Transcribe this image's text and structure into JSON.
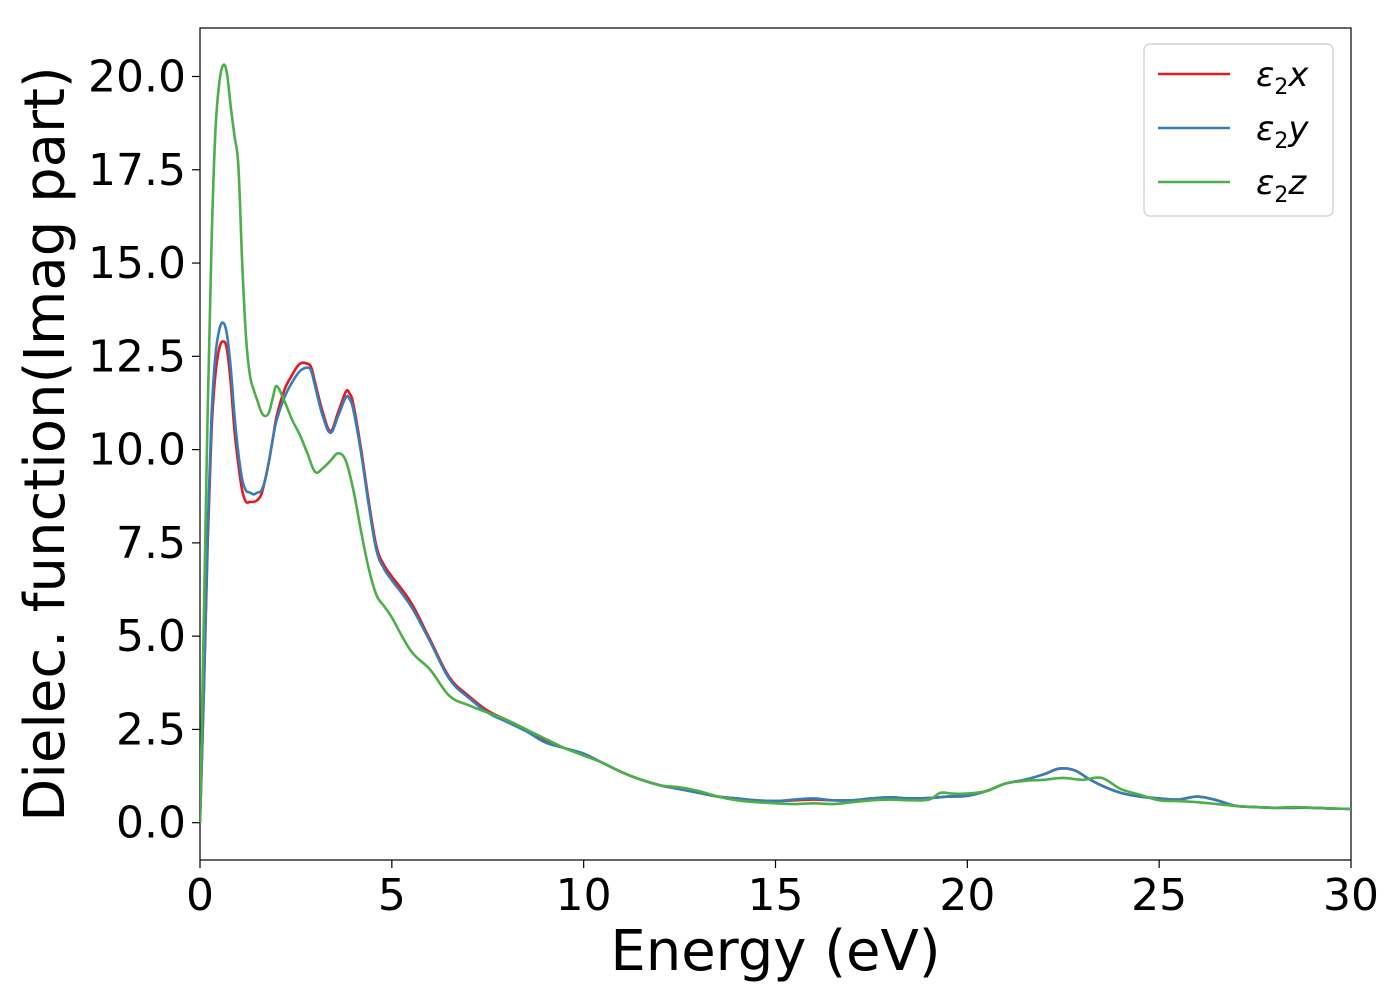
{
  "chart_data": {
    "type": "line",
    "title": "",
    "xlabel": "Energy (eV)",
    "ylabel": "Dielec. function(Imag part)",
    "xlim": [
      0,
      30
    ],
    "ylim": [
      -1.0,
      21.3
    ],
    "xticks": [
      0,
      5,
      10,
      15,
      20,
      25,
      30
    ],
    "xtick_labels": [
      "0",
      "5",
      "10",
      "15",
      "20",
      "25",
      "30"
    ],
    "yticks": [
      0.0,
      2.5,
      5.0,
      7.5,
      10.0,
      12.5,
      15.0,
      17.5,
      20.0
    ],
    "ytick_labels": [
      "0.0",
      "2.5",
      "5.0",
      "7.5",
      "10.0",
      "12.5",
      "15.0",
      "17.5",
      "20.0"
    ],
    "grid": false,
    "legend_position": "top-right",
    "series": [
      {
        "name": "ε2x",
        "name_base": "ε",
        "name_sub": "2",
        "name_var": "x",
        "color": "#e41a1c",
        "x": [
          0,
          0.1,
          0.2,
          0.3,
          0.4,
          0.5,
          0.6,
          0.7,
          0.8,
          0.9,
          1.0,
          1.1,
          1.2,
          1.3,
          1.4,
          1.5,
          1.6,
          1.7,
          1.8,
          1.9,
          2.0,
          2.2,
          2.4,
          2.6,
          2.8,
          2.9,
          3.0,
          3.2,
          3.4,
          3.6,
          3.8,
          3.9,
          4.0,
          4.2,
          4.4,
          4.6,
          4.8,
          5.0,
          5.5,
          6.0,
          6.5,
          7.0,
          7.5,
          8.0,
          8.5,
          9.0,
          9.5,
          10.0,
          10.5,
          11.0,
          11.5,
          12.0,
          12.5,
          13.0,
          13.5,
          14.0,
          14.5,
          15.0,
          15.5,
          16.0,
          16.5,
          17.0,
          17.5,
          18.0,
          18.5,
          19.0,
          19.5,
          20.0,
          20.5,
          21.0,
          21.5,
          22.0,
          22.4,
          22.8,
          23.2,
          23.6,
          24.0,
          24.5,
          25.0,
          25.5,
          26.0,
          26.5,
          27.0,
          27.5,
          28.0,
          28.5,
          29.0,
          29.5,
          30.0
        ],
        "values": [
          0,
          3.5,
          7.5,
          10.5,
          12.0,
          12.7,
          12.9,
          12.7,
          11.8,
          10.5,
          9.6,
          8.9,
          8.6,
          8.6,
          8.6,
          8.65,
          8.8,
          9.2,
          9.7,
          10.3,
          10.9,
          11.6,
          12.0,
          12.3,
          12.3,
          12.2,
          11.8,
          11.0,
          10.5,
          11.0,
          11.55,
          11.5,
          11.2,
          10.0,
          8.6,
          7.4,
          6.9,
          6.6,
          5.9,
          4.9,
          3.9,
          3.4,
          3.0,
          2.75,
          2.5,
          2.2,
          2.0,
          1.85,
          1.6,
          1.35,
          1.15,
          1.0,
          0.9,
          0.8,
          0.7,
          0.65,
          0.6,
          0.58,
          0.6,
          0.62,
          0.6,
          0.6,
          0.65,
          0.68,
          0.65,
          0.66,
          0.7,
          0.72,
          0.85,
          1.05,
          1.15,
          1.3,
          1.45,
          1.4,
          1.15,
          0.95,
          0.8,
          0.7,
          0.65,
          0.62,
          0.7,
          0.6,
          0.45,
          0.42,
          0.4,
          0.4,
          0.4,
          0.38,
          0.37
        ]
      },
      {
        "name": "ε2y",
        "name_base": "ε",
        "name_sub": "2",
        "name_var": "y",
        "color": "#377eb8",
        "x": [
          0,
          0.1,
          0.2,
          0.3,
          0.4,
          0.5,
          0.6,
          0.7,
          0.8,
          0.9,
          1.0,
          1.1,
          1.2,
          1.3,
          1.4,
          1.5,
          1.6,
          1.7,
          1.8,
          1.9,
          2.0,
          2.2,
          2.4,
          2.6,
          2.8,
          2.9,
          3.0,
          3.2,
          3.4,
          3.6,
          3.8,
          3.9,
          4.0,
          4.2,
          4.4,
          4.6,
          4.8,
          5.0,
          5.5,
          6.0,
          6.5,
          7.0,
          7.5,
          8.0,
          8.5,
          9.0,
          9.5,
          10.0,
          10.5,
          11.0,
          11.5,
          12.0,
          12.5,
          13.0,
          13.5,
          14.0,
          14.5,
          15.0,
          15.5,
          16.0,
          16.5,
          17.0,
          17.5,
          18.0,
          18.5,
          19.0,
          19.5,
          20.0,
          20.5,
          21.0,
          21.5,
          22.0,
          22.4,
          22.8,
          23.2,
          23.6,
          24.0,
          24.5,
          25.0,
          25.5,
          26.0,
          26.5,
          27.0,
          27.5,
          28.0,
          28.5,
          29.0,
          29.5,
          30.0
        ],
        "values": [
          0,
          3.6,
          7.8,
          10.9,
          12.5,
          13.2,
          13.4,
          13.1,
          12.2,
          10.9,
          9.9,
          9.2,
          8.9,
          8.85,
          8.8,
          8.85,
          8.9,
          9.2,
          9.7,
          10.3,
          10.8,
          11.4,
          11.8,
          12.1,
          12.2,
          12.1,
          11.7,
          10.9,
          10.45,
          10.9,
          11.4,
          11.35,
          11.05,
          9.9,
          8.5,
          7.3,
          6.8,
          6.5,
          5.8,
          4.85,
          3.85,
          3.35,
          2.95,
          2.7,
          2.45,
          2.15,
          2.0,
          1.85,
          1.6,
          1.35,
          1.15,
          1.0,
          0.9,
          0.8,
          0.7,
          0.65,
          0.6,
          0.58,
          0.62,
          0.65,
          0.6,
          0.6,
          0.65,
          0.68,
          0.65,
          0.66,
          0.7,
          0.72,
          0.85,
          1.05,
          1.15,
          1.3,
          1.45,
          1.4,
          1.15,
          0.95,
          0.8,
          0.7,
          0.65,
          0.62,
          0.7,
          0.6,
          0.45,
          0.42,
          0.4,
          0.4,
          0.4,
          0.38,
          0.37
        ]
      },
      {
        "name": "ε2z",
        "name_base": "ε",
        "name_sub": "2",
        "name_var": "z",
        "color": "#4daf4a",
        "x": [
          0,
          0.1,
          0.2,
          0.3,
          0.4,
          0.5,
          0.6,
          0.7,
          0.8,
          0.9,
          1.0,
          1.1,
          1.2,
          1.3,
          1.4,
          1.5,
          1.6,
          1.7,
          1.8,
          1.9,
          2.0,
          2.2,
          2.4,
          2.6,
          2.8,
          3.0,
          3.2,
          3.4,
          3.6,
          3.8,
          4.0,
          4.2,
          4.4,
          4.6,
          4.8,
          5.0,
          5.5,
          6.0,
          6.5,
          7.0,
          7.5,
          8.0,
          8.5,
          9.0,
          9.5,
          10.0,
          10.5,
          11.0,
          11.5,
          12.0,
          12.5,
          13.0,
          13.5,
          14.0,
          14.5,
          15.0,
          15.5,
          16.0,
          16.5,
          17.0,
          17.5,
          18.0,
          18.5,
          19.0,
          19.3,
          19.6,
          20.0,
          20.5,
          21.0,
          21.5,
          22.0,
          22.5,
          23.0,
          23.5,
          24.0,
          24.5,
          25.0,
          25.5,
          26.0,
          26.5,
          27.0,
          27.5,
          28.0,
          28.5,
          29.0,
          29.5,
          30.0
        ],
        "values": [
          0,
          5.5,
          11.0,
          15.5,
          18.5,
          19.8,
          20.3,
          20.1,
          19.2,
          18.4,
          17.6,
          15.0,
          13.0,
          12.0,
          11.6,
          11.3,
          11.0,
          10.9,
          11.0,
          11.4,
          11.7,
          11.3,
          10.8,
          10.4,
          9.9,
          9.4,
          9.5,
          9.7,
          9.9,
          9.7,
          8.9,
          7.8,
          6.8,
          6.1,
          5.8,
          5.5,
          4.6,
          4.1,
          3.4,
          3.15,
          2.95,
          2.75,
          2.5,
          2.25,
          2.0,
          1.8,
          1.6,
          1.35,
          1.15,
          1.0,
          0.95,
          0.85,
          0.7,
          0.6,
          0.55,
          0.52,
          0.5,
          0.52,
          0.5,
          0.55,
          0.6,
          0.62,
          0.6,
          0.62,
          0.8,
          0.78,
          0.78,
          0.85,
          1.05,
          1.12,
          1.15,
          1.2,
          1.15,
          1.2,
          0.9,
          0.75,
          0.6,
          0.58,
          0.55,
          0.5,
          0.45,
          0.42,
          0.4,
          0.42,
          0.4,
          0.38,
          0.37
        ]
      }
    ]
  }
}
